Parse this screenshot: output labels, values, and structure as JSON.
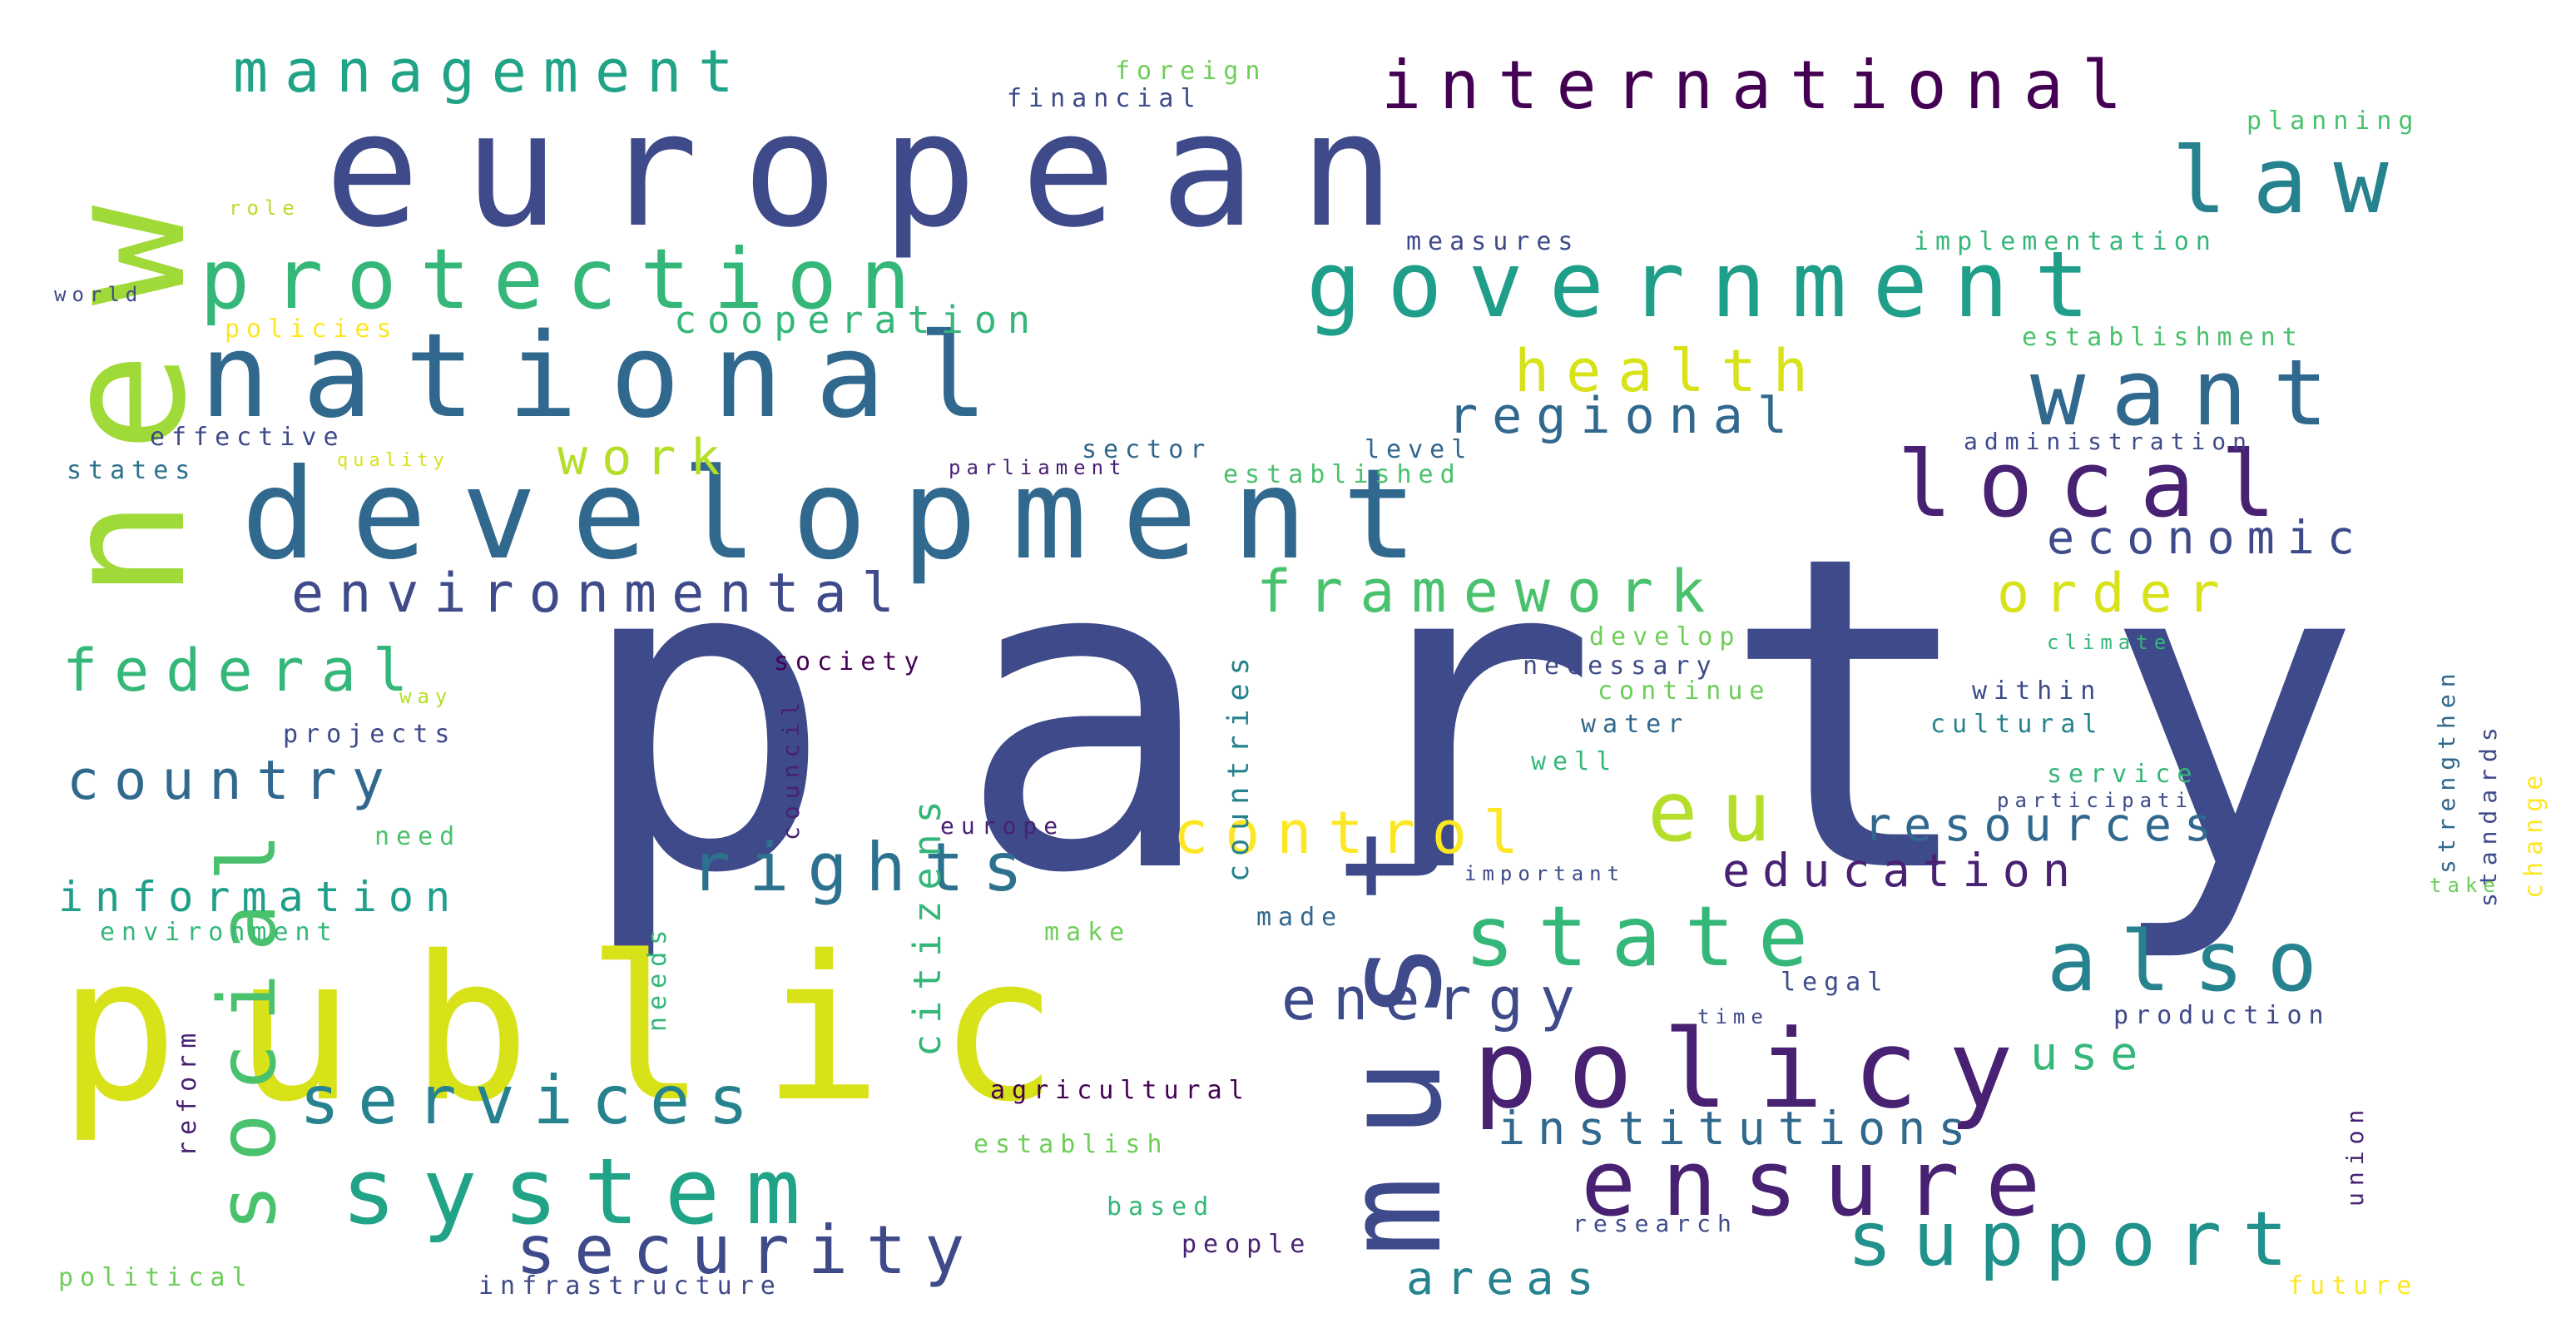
{
  "image": "word cloud",
  "palette": {
    "background": "#ffffff",
    "navy": "#3e4a89",
    "dark_purple": "#482173",
    "deep_purple": "#440154",
    "blue": "#31688e",
    "teal": "#26828e",
    "turquoise": "#1f9e89",
    "green": "#35b779",
    "light_green": "#6ece58",
    "yellow_green": "#b5de2b",
    "yellow": "#fde725"
  },
  "words": [
    {
      "text": "party",
      "color": "#3e4a89"
    },
    {
      "text": "european",
      "color": "#3e4a89"
    },
    {
      "text": "public",
      "color": "#d8e219"
    },
    {
      "text": "development",
      "color": "#31688e"
    },
    {
      "text": "national",
      "color": "#31688e"
    },
    {
      "text": "new",
      "color": "#a0da39"
    },
    {
      "text": "must",
      "color": "#3e4a89"
    },
    {
      "text": "government",
      "color": "#1f9e89"
    },
    {
      "text": "protection",
      "color": "#35b779"
    },
    {
      "text": "system",
      "color": "#20a386"
    },
    {
      "text": "social",
      "color": "#4ac16d"
    },
    {
      "text": "policy",
      "color": "#482173"
    },
    {
      "text": "state",
      "color": "#35b779"
    },
    {
      "text": "also",
      "color": "#26828e"
    },
    {
      "text": "international",
      "color": "#440154"
    },
    {
      "text": "local",
      "color": "#482173"
    },
    {
      "text": "want",
      "color": "#31688e"
    },
    {
      "text": "law",
      "color": "#26828e"
    },
    {
      "text": "ensure",
      "color": "#482173"
    },
    {
      "text": "support",
      "color": "#21918c"
    },
    {
      "text": "eu",
      "color": "#b5de2b"
    },
    {
      "text": "rights",
      "color": "#2c728e"
    },
    {
      "text": "services",
      "color": "#26828e"
    },
    {
      "text": "security",
      "color": "#3e4a89"
    },
    {
      "text": "management",
      "color": "#20a386"
    },
    {
      "text": "health",
      "color": "#d8e219"
    },
    {
      "text": "country",
      "color": "#31688e"
    },
    {
      "text": "federal",
      "color": "#35b779"
    },
    {
      "text": "environmental",
      "color": "#3e4a89"
    },
    {
      "text": "framework",
      "color": "#4ac16d"
    },
    {
      "text": "control",
      "color": "#fde725"
    },
    {
      "text": "energy",
      "color": "#3e4a89"
    },
    {
      "text": "institutions",
      "color": "#31688e"
    },
    {
      "text": "education",
      "color": "#482173"
    },
    {
      "text": "resources",
      "color": "#31688e"
    },
    {
      "text": "regional",
      "color": "#31688e"
    },
    {
      "text": "economic",
      "color": "#3e4a89"
    },
    {
      "text": "order",
      "color": "#d8e219"
    },
    {
      "text": "work",
      "color": "#b5de2b"
    },
    {
      "text": "information",
      "color": "#1f9e89"
    },
    {
      "text": "cooperation",
      "color": "#35b779"
    },
    {
      "text": "areas",
      "color": "#26828e"
    },
    {
      "text": "use",
      "color": "#35b779"
    },
    {
      "text": "citizens",
      "color": "#35b779"
    },
    {
      "text": "countries",
      "color": "#26828e"
    },
    {
      "text": "financial",
      "color": "#3e4a89"
    },
    {
      "text": "foreign",
      "color": "#6ece58"
    },
    {
      "text": "planning",
      "color": "#4ac16d"
    },
    {
      "text": "implementation",
      "color": "#35b779"
    },
    {
      "text": "measures",
      "color": "#3e4a89"
    },
    {
      "text": "establishment",
      "color": "#4ac16d"
    },
    {
      "text": "sector",
      "color": "#31688e"
    },
    {
      "text": "level",
      "color": "#31688e"
    },
    {
      "text": "administration",
      "color": "#3e4a89"
    },
    {
      "text": "established",
      "color": "#4ac16d"
    },
    {
      "text": "parliament",
      "color": "#482173"
    },
    {
      "text": "effective",
      "color": "#3e4a89"
    },
    {
      "text": "states",
      "color": "#2c728e"
    },
    {
      "text": "quality",
      "color": "#d8e219"
    },
    {
      "text": "policies",
      "color": "#fde725"
    },
    {
      "text": "role",
      "color": "#b5de2b"
    },
    {
      "text": "world",
      "color": "#3e4a89"
    },
    {
      "text": "develop",
      "color": "#6ece58"
    },
    {
      "text": "necessary",
      "color": "#3e4a89"
    },
    {
      "text": "continue",
      "color": "#6ece58"
    },
    {
      "text": "water",
      "color": "#31688e"
    },
    {
      "text": "well",
      "color": "#35b779"
    },
    {
      "text": "within",
      "color": "#3e4a89"
    },
    {
      "text": "cultural",
      "color": "#26828e"
    },
    {
      "text": "climate",
      "color": "#35b779"
    },
    {
      "text": "service",
      "color": "#35b779"
    },
    {
      "text": "participation",
      "color": "#3e4a89"
    },
    {
      "text": "strengthen",
      "color": "#31688e"
    },
    {
      "text": "standards",
      "color": "#3e4a89"
    },
    {
      "text": "change",
      "color": "#fde725"
    },
    {
      "text": "take",
      "color": "#6ece58"
    },
    {
      "text": "important",
      "color": "#3e4a89"
    },
    {
      "text": "society",
      "color": "#440154"
    },
    {
      "text": "way",
      "color": "#b5de2b"
    },
    {
      "text": "projects",
      "color": "#3e4a89"
    },
    {
      "text": "council",
      "color": "#482173"
    },
    {
      "text": "europe",
      "color": "#482173"
    },
    {
      "text": "need",
      "color": "#4ac16d"
    },
    {
      "text": "needs",
      "color": "#35b779"
    },
    {
      "text": "environment",
      "color": "#35b779"
    },
    {
      "text": "make",
      "color": "#6ece58"
    },
    {
      "text": "made",
      "color": "#31688e"
    },
    {
      "text": "legal",
      "color": "#3e4a89"
    },
    {
      "text": "time",
      "color": "#3e4a89"
    },
    {
      "text": "production",
      "color": "#3e4a89"
    },
    {
      "text": "reform",
      "color": "#482173"
    },
    {
      "text": "agricultural",
      "color": "#440154"
    },
    {
      "text": "establish",
      "color": "#6ece58"
    },
    {
      "text": "based",
      "color": "#35b779"
    },
    {
      "text": "people",
      "color": "#482173"
    },
    {
      "text": "research",
      "color": "#3e4a89"
    },
    {
      "text": "union",
      "color": "#482173"
    },
    {
      "text": "political",
      "color": "#6ece58"
    },
    {
      "text": "infrastructure",
      "color": "#3e4a89"
    },
    {
      "text": "future",
      "color": "#fde725"
    }
  ]
}
